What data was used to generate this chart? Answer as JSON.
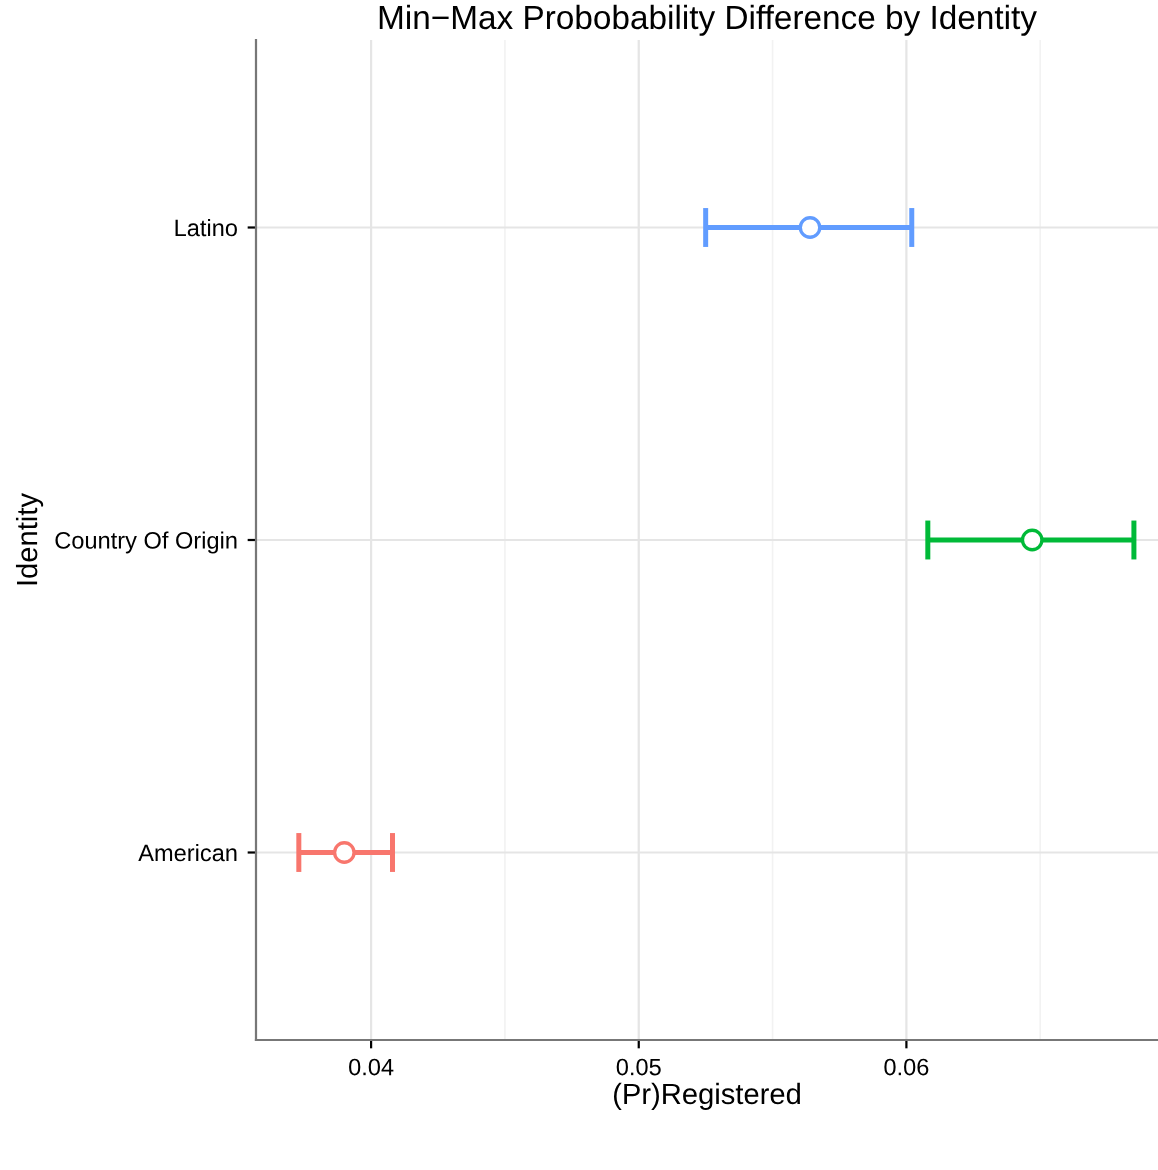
{
  "chart_data": {
    "type": "scatter",
    "title": "Min−Max Probobability Difference by Identity",
    "xlabel": "(Pr)Registered",
    "ylabel": "Identity",
    "orientation": "horizontal",
    "categories": [
      "Latino",
      "Country Of Origin",
      "American"
    ],
    "values": [
      0.0564,
      0.0647,
      0.039
    ],
    "errors": [
      [
        0.0525,
        0.0602
      ],
      [
        0.0608,
        0.0685
      ],
      [
        0.0373,
        0.0408
      ]
    ],
    "colors": [
      "#619cff",
      "#00ba38",
      "#f8766d"
    ],
    "xlim": [
      0.0357,
      0.0694
    ],
    "xticks": [
      0.04,
      0.05,
      0.06
    ],
    "marker": "circle",
    "grid": true,
    "legend": false
  }
}
